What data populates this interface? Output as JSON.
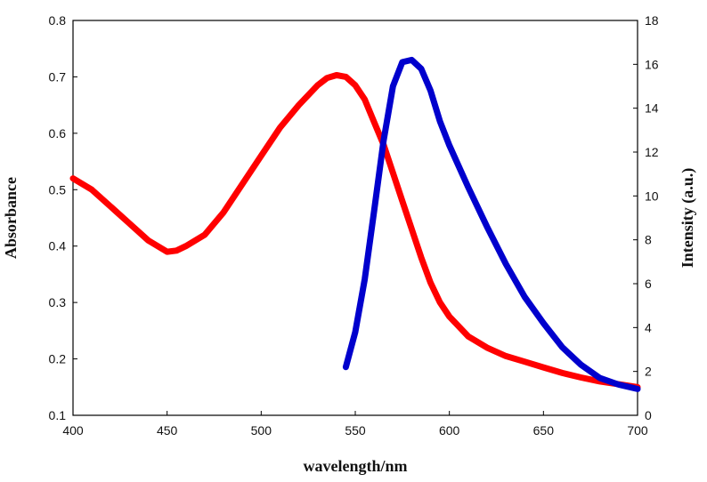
{
  "chart_data": {
    "type": "line",
    "title": "",
    "xlabel": "wavelength/nm",
    "ylabel": "Absorbance",
    "y2label": "Intensity (a.u.)",
    "xlim": [
      400,
      700
    ],
    "ylim": [
      0.1,
      0.8
    ],
    "y2lim": [
      0,
      18
    ],
    "x_ticks": [
      400,
      450,
      500,
      550,
      600,
      650,
      700
    ],
    "y_ticks": [
      0.1,
      0.2,
      0.3,
      0.4,
      0.5,
      0.6,
      0.7,
      0.8
    ],
    "y2_ticks": [
      0,
      2,
      4,
      6,
      8,
      10,
      12,
      14,
      16,
      18
    ],
    "grid": false,
    "legend": "none",
    "series": [
      {
        "axis": "left",
        "color": "#ff0000",
        "x": [
          400,
          410,
          420,
          430,
          440,
          445,
          450,
          455,
          460,
          470,
          480,
          490,
          500,
          510,
          520,
          530,
          535,
          540,
          545,
          550,
          555,
          560,
          565,
          570,
          575,
          580,
          585,
          590,
          595,
          600,
          610,
          620,
          630,
          640,
          650,
          660,
          670,
          680,
          690,
          700
        ],
        "values": [
          0.52,
          0.5,
          0.47,
          0.44,
          0.41,
          0.4,
          0.39,
          0.392,
          0.4,
          0.42,
          0.46,
          0.51,
          0.56,
          0.61,
          0.65,
          0.685,
          0.698,
          0.703,
          0.7,
          0.685,
          0.66,
          0.62,
          0.58,
          0.53,
          0.48,
          0.43,
          0.38,
          0.335,
          0.3,
          0.275,
          0.24,
          0.22,
          0.205,
          0.195,
          0.185,
          0.175,
          0.167,
          0.16,
          0.155,
          0.15
        ]
      },
      {
        "axis": "right",
        "color": "#0000cd",
        "x": [
          545,
          550,
          555,
          560,
          565,
          570,
          575,
          580,
          585,
          590,
          595,
          600,
          610,
          620,
          630,
          640,
          650,
          660,
          670,
          680,
          690,
          700
        ],
        "values": [
          2.2,
          3.8,
          6.2,
          9.3,
          12.5,
          15.0,
          16.1,
          16.2,
          15.8,
          14.8,
          13.4,
          12.3,
          10.4,
          8.6,
          6.9,
          5.4,
          4.2,
          3.1,
          2.3,
          1.7,
          1.4,
          1.2
        ]
      }
    ]
  }
}
